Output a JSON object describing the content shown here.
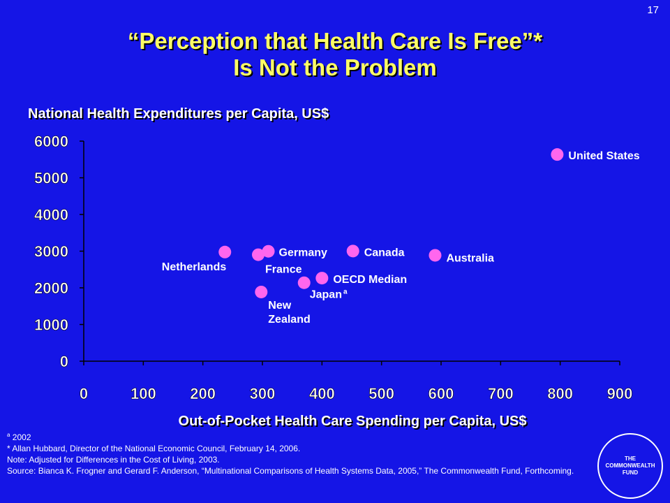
{
  "slide": {
    "number": "17",
    "title_line1": "“Perception that Health Care Is Free”*",
    "title_line2": "Is Not the Problem",
    "y_axis_label": "National Health Expenditures per Capita, US$",
    "x_axis_label": "Out-of-Pocket Health Care Spending per Capita, US$"
  },
  "footnotes": {
    "a_mark": "a",
    "a_text": "2002",
    "line1": "* Allan Hubbard, Director of the National Economic Council, February 14, 2006.",
    "line2": "Note: Adjusted for Differences in the Cost of Living, 2003.",
    "line3": "Source: Bianca K. Frogner and Gerard F. Anderson, “Multinational Comparisons of Health Systems Data, 2005,” The Commonwealth Fund, Forthcoming."
  },
  "logo": {
    "text": "THE\nCOMMONWEALTH\nFUND"
  },
  "colors": {
    "background": "#1515e6",
    "title": "#ffff66",
    "marker": "#ff66ee",
    "text": "#ffffff"
  },
  "chart_data": {
    "type": "scatter",
    "xlim": [
      0,
      900
    ],
    "ylim": [
      0,
      6000
    ],
    "x_ticks": [
      0,
      100,
      200,
      300,
      400,
      500,
      600,
      700,
      800,
      900
    ],
    "y_ticks": [
      0,
      1000,
      2000,
      3000,
      4000,
      5000,
      6000
    ],
    "grid": false,
    "points": [
      {
        "label": "United States",
        "x": 795,
        "y": 5635
      },
      {
        "label": "Netherlands",
        "x": 237,
        "y": 2976
      },
      {
        "label": "France",
        "x": 293,
        "y": 2903
      },
      {
        "label": "Germany",
        "x": 310,
        "y": 2996
      },
      {
        "label": "Canada",
        "x": 452,
        "y": 3003
      },
      {
        "label": "Australia",
        "x": 590,
        "y": 2886
      },
      {
        "label": "New Zealand",
        "x": 298,
        "y": 1886
      },
      {
        "label": "Japan",
        "label_superscript": "a",
        "x": 370,
        "y": 2139
      },
      {
        "label": "OECD Median",
        "x": 400,
        "y": 2265
      }
    ]
  }
}
